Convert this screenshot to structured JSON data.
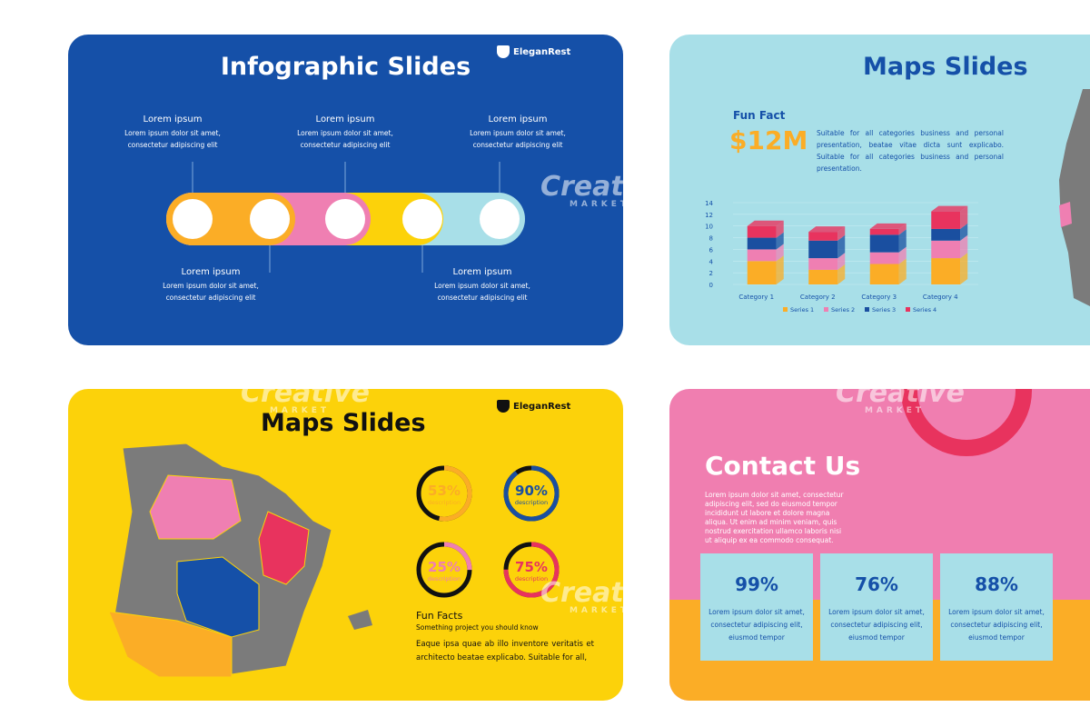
{
  "watermark": {
    "title": "Creative",
    "subtitle": "MARKET"
  },
  "slides": [
    {
      "title": "Infographic Slides",
      "brand": "EleganRest",
      "steps": [
        {
          "heading": "Lorem ipsum",
          "lines": [
            "Lorem ipsum dolor sit amet,",
            "consectetur adipiscing elit"
          ]
        },
        {
          "heading": "Lorem ipsum",
          "lines": [
            "Lorem ipsum dolor sit amet,",
            "consectetur adipiscing elit"
          ]
        },
        {
          "heading": "Lorem ipsum",
          "lines": [
            "Lorem ipsum dolor sit amet,",
            "consectetur adipiscing elit"
          ]
        },
        {
          "heading": "Lorem ipsum",
          "lines": [
            "Lorem ipsum dolor sit amet,",
            "consectetur adipiscing elit"
          ]
        },
        {
          "heading": "Lorem ipsum",
          "lines": [
            "Lorem ipsum dolor sit amet,",
            "consectetur adipiscing elit"
          ]
        }
      ]
    },
    {
      "title": "Maps Slides",
      "fact_label": "Fun Fact",
      "fact_value": "$12M",
      "text": "Suitable for all categories business and personal presentation, beatae vitae dicta sunt explicabo. Suitable for all categories business and personal presentation."
    },
    {
      "title": "Maps Slides",
      "brand": "EleganRest",
      "heading": "Fun Facts",
      "subheading": "Something project  you should know",
      "text": "Eaque ipsa quae ab illo inventore veritatis et architecto beatae explicabo. Suitable for all,",
      "rings": [
        {
          "value": 53,
          "label": "53%",
          "description": "description",
          "color": "#fbad26"
        },
        {
          "value": 90,
          "label": "90%",
          "description": "description",
          "color": "#1a4fa0"
        },
        {
          "value": 25,
          "label": "25%",
          "description": "description",
          "color": "#ef7fb2"
        },
        {
          "value": 75,
          "label": "75%",
          "description": "description",
          "color": "#e8335e"
        }
      ]
    },
    {
      "title": "Contact Us",
      "text": "Lorem ipsum dolor sit amet, consectetur adipiscing elit, sed do eiusmod tempor incididunt ut labore et dolore magna aliqua. Ut enim ad minim veniam, quis nostrud exercitation ullamco laboris nisi ut aliquip ex ea commodo consequat.",
      "cards": [
        {
          "value": "99%",
          "lines": [
            "Lorem ipsum dolor sit amet,",
            "consectetur adipiscing elit,",
            "eiusmod tempor"
          ]
        },
        {
          "value": "76%",
          "lines": [
            "Lorem ipsum dolor sit amet,",
            "consectetur adipiscing elit,",
            "eiusmod tempor"
          ]
        },
        {
          "value": "88%",
          "lines": [
            "Lorem ipsum dolor sit amet,",
            "consectetur adipiscing elit,",
            "eiusmod tempor"
          ]
        }
      ]
    }
  ],
  "chart_data": {
    "type": "bar",
    "stacked": true,
    "categories": [
      "Category 1",
      "Category 2",
      "Category 3",
      "Category 4"
    ],
    "series": [
      {
        "name": "Series 1",
        "color": "#fbad26",
        "values": [
          4,
          2.5,
          3.5,
          4.5
        ]
      },
      {
        "name": "Series 2",
        "color": "#ef7fb2",
        "values": [
          2,
          2,
          2,
          3
        ]
      },
      {
        "name": "Series 3",
        "color": "#1a4fa0",
        "values": [
          2,
          3,
          3,
          2
        ]
      },
      {
        "name": "Series 4",
        "color": "#e8335e",
        "values": [
          2,
          1.5,
          1,
          3
        ]
      }
    ],
    "ylim": [
      0,
      14
    ],
    "yticks": [
      0,
      2,
      4,
      6,
      8,
      10,
      12,
      14
    ],
    "legend": "bottom"
  }
}
